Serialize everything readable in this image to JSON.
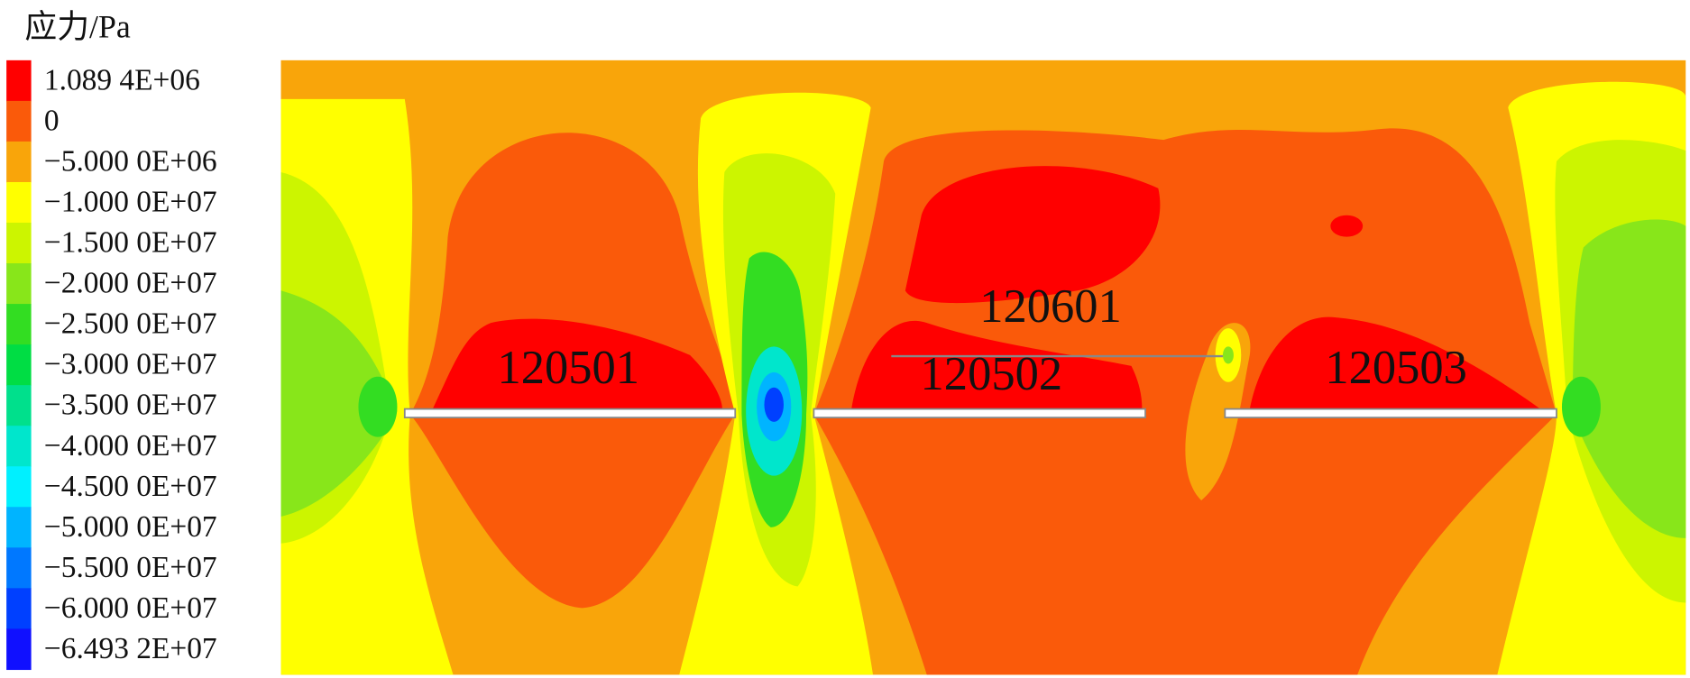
{
  "legend": {
    "title": "应力/Pa",
    "levels": [
      {
        "label": "1.089 4E+06",
        "color": "#ff0000"
      },
      {
        "label": "0",
        "color": "#fa5a0a"
      },
      {
        "label": "−5.000 0E+06",
        "color": "#f9a50a"
      },
      {
        "label": "−1.000 0E+07",
        "color": "#ffff00"
      },
      {
        "label": "−1.500 0E+07",
        "color": "#ccf500"
      },
      {
        "label": "−2.000 0E+07",
        "color": "#88e61a"
      },
      {
        "label": "−2.500 0E+07",
        "color": "#33dd22"
      },
      {
        "label": "−3.000 0E+07",
        "color": "#00dd44"
      },
      {
        "label": "−3.500 0E+07",
        "color": "#00e08c"
      },
      {
        "label": "−4.000 0E+07",
        "color": "#00e6cc"
      },
      {
        "label": "−4.500 0E+07",
        "color": "#00f0ff"
      },
      {
        "label": "−5.000 0E+07",
        "color": "#00b4ff"
      },
      {
        "label": "−5.500 0E+07",
        "color": "#0078ff"
      },
      {
        "label": "−6.000 0E+07",
        "color": "#0040ff"
      },
      {
        "label": "−6.493 2E+07",
        "color": "#1010ff"
      }
    ]
  },
  "panels": [
    "120501",
    "120502",
    "120601",
    "120503"
  ]
}
